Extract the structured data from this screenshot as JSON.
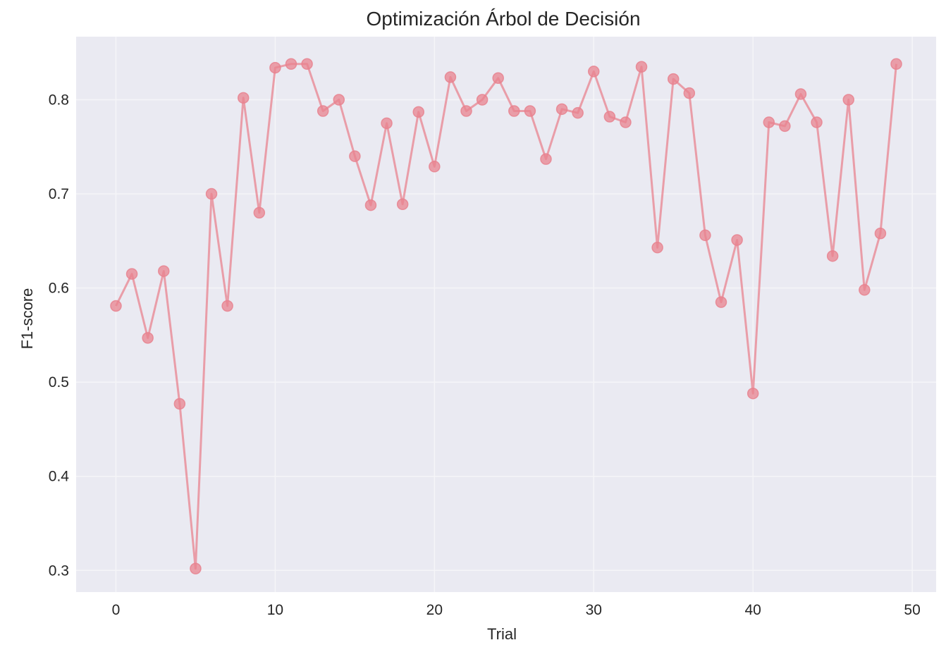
{
  "chart_data": {
    "type": "line",
    "title": "Optimización Árbol de Decisión",
    "xlabel": "Trial",
    "ylabel": "F1-score",
    "xlim": [
      -2.5,
      51.5
    ],
    "ylim": [
      0.277,
      0.867
    ],
    "xticks": [
      0,
      10,
      20,
      30,
      40,
      50
    ],
    "yticks": [
      0.3,
      0.4,
      0.5,
      0.6,
      0.7,
      0.8
    ],
    "grid": true,
    "marker": "circle",
    "color": "#e8838f",
    "background": "#eaeaf2",
    "series": [
      {
        "x": [
          0,
          1,
          2,
          3,
          4,
          5,
          6,
          7,
          8,
          9,
          10,
          11,
          12,
          13,
          14,
          15,
          16,
          17,
          18,
          19,
          20,
          21,
          22,
          23,
          24,
          25,
          26,
          27,
          28,
          29,
          30,
          31,
          32,
          33,
          34,
          35,
          36,
          37,
          38,
          39,
          40,
          41,
          42,
          43,
          44,
          45,
          46,
          47,
          48,
          49
        ],
        "values": [
          0.581,
          0.615,
          0.547,
          0.618,
          0.477,
          0.302,
          0.7,
          0.581,
          0.802,
          0.68,
          0.834,
          0.838,
          0.838,
          0.788,
          0.8,
          0.74,
          0.688,
          0.775,
          0.689,
          0.787,
          0.729,
          0.824,
          0.788,
          0.8,
          0.823,
          0.788,
          0.788,
          0.737,
          0.79,
          0.786,
          0.83,
          0.782,
          0.776,
          0.835,
          0.643,
          0.822,
          0.807,
          0.656,
          0.585,
          0.651,
          0.488,
          0.776,
          0.772,
          0.806,
          0.776,
          0.634,
          0.8,
          0.598,
          0.658,
          0.838
        ]
      }
    ]
  }
}
